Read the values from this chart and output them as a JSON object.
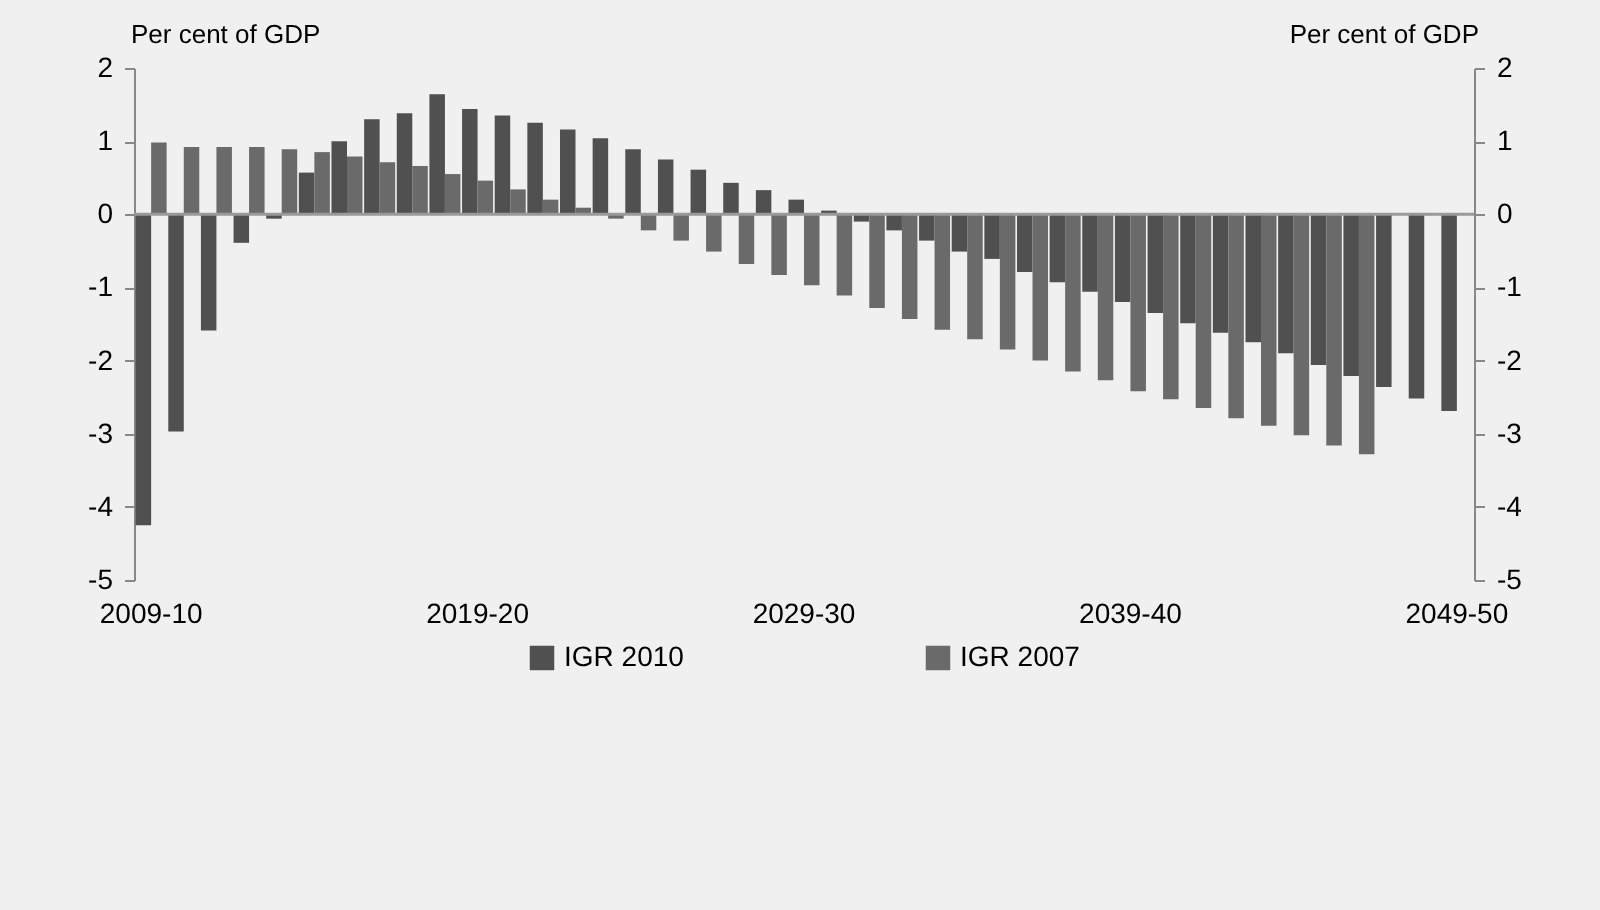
{
  "chart_data": {
    "type": "bar",
    "ylabel": "Per cent of GDP",
    "y2label": "Per cent of GDP",
    "categories": [
      "2009-10",
      null,
      null,
      null,
      null,
      null,
      null,
      null,
      null,
      null,
      "2019-20",
      null,
      null,
      null,
      null,
      null,
      null,
      null,
      null,
      null,
      "2029-30",
      null,
      null,
      null,
      null,
      null,
      null,
      null,
      null,
      null,
      "2039-40",
      null,
      null,
      null,
      null,
      null,
      null,
      null,
      null,
      null,
      "2049-50"
    ],
    "series": [
      {
        "name": "IGR 2010",
        "color": "#505050",
        "values": [
          -4.25,
          -2.97,
          -1.59,
          -0.39,
          -0.06,
          0.57,
          1.0,
          1.3,
          1.38,
          1.64,
          1.44,
          1.35,
          1.25,
          1.16,
          1.04,
          0.89,
          0.75,
          0.61,
          0.43,
          0.33,
          0.2,
          0.05,
          -0.1,
          -0.22,
          -0.36,
          -0.51,
          -0.61,
          -0.79,
          -0.93,
          -1.06,
          -1.2,
          -1.35,
          -1.49,
          -1.62,
          -1.75,
          -1.9,
          -2.06,
          -2.21,
          -2.36,
          -2.52,
          -2.69
        ]
      },
      {
        "name": "IGR 2007",
        "color": "#6a6a6a",
        "values": [
          0.98,
          0.92,
          0.92,
          0.92,
          0.89,
          0.85,
          0.79,
          0.71,
          0.66,
          0.55,
          0.46,
          0.34,
          0.2,
          0.09,
          -0.06,
          -0.22,
          -0.36,
          -0.51,
          -0.68,
          -0.83,
          -0.97,
          -1.11,
          -1.28,
          -1.43,
          -1.58,
          -1.71,
          -1.85,
          -2.0,
          -2.15,
          -2.27,
          -2.42,
          -2.53,
          -2.65,
          -2.79,
          -2.89,
          -3.02,
          -3.16,
          -3.28,
          null,
          null,
          null
        ]
      }
    ],
    "ylim": [
      -5,
      2
    ],
    "yticks": [
      -5,
      -4,
      -3,
      -2,
      -1,
      0,
      1,
      2
    ],
    "y2lim": [
      -5,
      2
    ],
    "y2ticks": [
      -5,
      -4,
      -3,
      -2,
      -1,
      0,
      1,
      2
    ],
    "ref_lines": [
      {
        "axis": "y",
        "value": 0,
        "color": "#999999"
      }
    ],
    "legend": "bottom"
  }
}
